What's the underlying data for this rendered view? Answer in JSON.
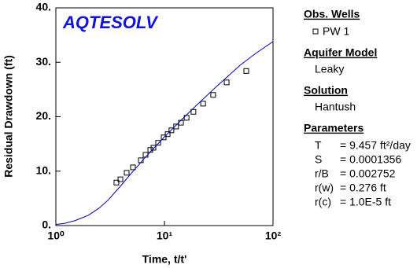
{
  "chart_data": {
    "type": "scatter",
    "logo": "AQTESOLV",
    "x_label": "Time, t/t'",
    "y_label": "Residual Drawdown (ft)",
    "xscale": "log",
    "xlim": [
      1,
      100
    ],
    "xticks": [
      {
        "value": 1,
        "label": "10⁰"
      },
      {
        "value": 10,
        "label": "10¹"
      },
      {
        "value": 100,
        "label": "10²"
      }
    ],
    "ylim": [
      0,
      40
    ],
    "yticks": [
      {
        "value": 0,
        "label": "0."
      },
      {
        "value": 10,
        "label": "10."
      },
      {
        "value": 20,
        "label": "20."
      },
      {
        "value": 30,
        "label": "30."
      },
      {
        "value": 40,
        "label": "40."
      }
    ],
    "series": [
      {
        "name": "PW 1",
        "type": "scatter",
        "marker": "square",
        "color": "#000000",
        "x": [
          3.61,
          3.93,
          4.49,
          5.13,
          6.06,
          6.7,
          7.41,
          7.92,
          8.75,
          9.84,
          10.7,
          11.6,
          12.8,
          14.2,
          16.0,
          18.5,
          22.7,
          28.1,
          37.4,
          56.7
        ],
        "values": [
          7.9,
          8.5,
          9.7,
          10.7,
          12.0,
          13.0,
          13.9,
          14.3,
          15.2,
          16.2,
          16.8,
          17.5,
          18.2,
          18.9,
          19.8,
          20.9,
          22.4,
          24.0,
          26.3,
          28.4
        ]
      },
      {
        "type": "line",
        "color": "#0000c0",
        "x": [
          1,
          1.2,
          1.5,
          2,
          2.5,
          3,
          4,
          5,
          7,
          10,
          15,
          20,
          30,
          50,
          70,
          100
        ],
        "values": [
          0.2,
          0.4,
          0.9,
          1.9,
          3.2,
          4.6,
          7.4,
          9.7,
          13.0,
          16.3,
          19.8,
          22.2,
          25.5,
          29.5,
          31.7,
          33.8
        ]
      }
    ]
  },
  "side_panel": {
    "obs_wells_title": "Obs. Wells",
    "aquifer_title": "Aquifer Model",
    "aquifer": "Leaky",
    "solution_title": "Solution",
    "solution": "Hantush",
    "parameters_title": "Parameters",
    "parameters": [
      {
        "name": "T",
        "value": "= 9.457 ft²/day"
      },
      {
        "name": "S",
        "value": "= 0.0001356"
      },
      {
        "name": "r/B",
        "value": "= 0.002752"
      },
      {
        "name": "r(w)",
        "value": "= 0.276 ft"
      },
      {
        "name": "r(c)",
        "value": "= 1.0E-5 ft"
      }
    ]
  }
}
